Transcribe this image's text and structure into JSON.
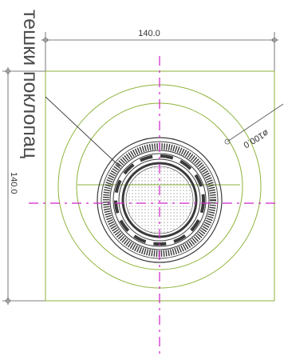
{
  "note": {
    "label": "тешки поклопац"
  },
  "dimensions": {
    "width": "140.0",
    "height": "140.0",
    "diameter": "ø100.0"
  },
  "colors": {
    "outline": "#8db33a",
    "center_line": "#d020c8",
    "dimension": "#555555",
    "cover": "#3a3a3a"
  }
}
